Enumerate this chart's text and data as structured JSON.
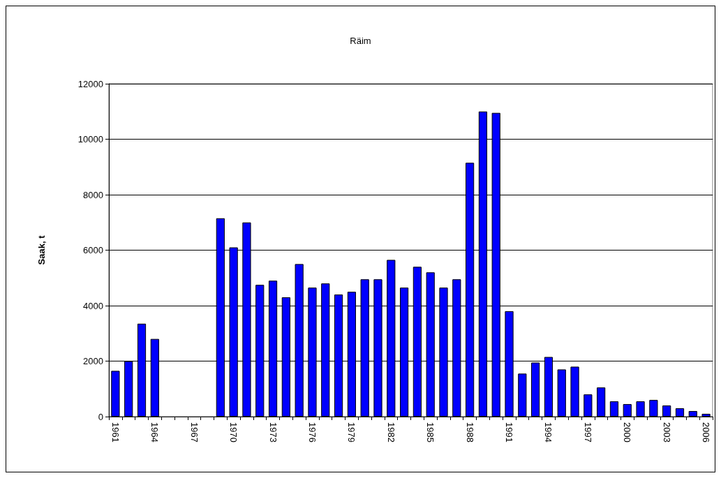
{
  "chart_data": {
    "type": "bar",
    "title": "Räim",
    "ylabel": "Saak, t",
    "categories": [
      "1961",
      null,
      null,
      "1964",
      null,
      null,
      "1967",
      null,
      null,
      "1970",
      null,
      null,
      "1973",
      null,
      null,
      "1976",
      null,
      null,
      "1979",
      null,
      null,
      "1982",
      null,
      null,
      "1985",
      null,
      null,
      "1988",
      null,
      null,
      "1991",
      null,
      null,
      "1994",
      null,
      null,
      "1997",
      null,
      null,
      "2000",
      null,
      null,
      "2003",
      null,
      null,
      "2006"
    ],
    "values": [
      1650,
      2000,
      3350,
      2800,
      0,
      0,
      0,
      0,
      7150,
      6100,
      7000,
      4750,
      4900,
      4300,
      5500,
      4650,
      4800,
      4400,
      4500,
      4950,
      4950,
      5650,
      4650,
      5400,
      5200,
      4650,
      4950,
      9150,
      11000,
      10950,
      3800,
      1550,
      1950,
      2150,
      1700,
      1800,
      800,
      1050,
      550,
      450,
      550,
      600,
      400,
      300,
      200,
      100
    ],
    "color": "#0000ff",
    "ylim": [
      0,
      12000
    ],
    "yticks": [
      0,
      2000,
      4000,
      6000,
      8000,
      10000,
      12000
    ],
    "grid": "y"
  }
}
